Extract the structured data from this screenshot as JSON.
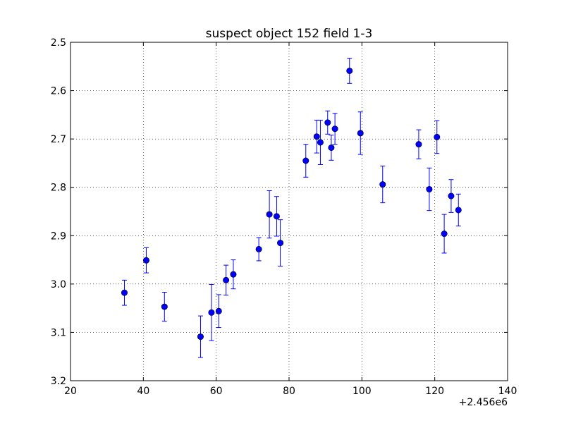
{
  "chart_data": {
    "type": "scatter",
    "title": "suspect object 152 field 1-3",
    "xlabel": "",
    "ylabel": "",
    "x_offset_label": "+2.456e6",
    "xlim": [
      20,
      140
    ],
    "ylim": [
      3.2,
      2.5
    ],
    "y_inverted": true,
    "grid": true,
    "xticks": [
      "20",
      "40",
      "60",
      "80",
      "100",
      "120",
      "140"
    ],
    "yticks": [
      "2.5",
      "2.6",
      "2.7",
      "2.8",
      "2.9",
      "3.0",
      "3.1",
      "3.2"
    ],
    "marker_color": "#0000ff",
    "series": [
      {
        "points": [
          {
            "x": 34.8,
            "y": 3.018,
            "err": 0.026
          },
          {
            "x": 40.8,
            "y": 2.951,
            "err": 0.026
          },
          {
            "x": 45.8,
            "y": 3.047,
            "err": 0.03
          },
          {
            "x": 55.7,
            "y": 3.109,
            "err": 0.043
          },
          {
            "x": 58.7,
            "y": 3.059,
            "err": 0.058
          },
          {
            "x": 60.7,
            "y": 3.056,
            "err": 0.034
          },
          {
            "x": 62.7,
            "y": 2.992,
            "err": 0.031
          },
          {
            "x": 64.7,
            "y": 2.98,
            "err": 0.03
          },
          {
            "x": 71.7,
            "y": 2.928,
            "err": 0.024
          },
          {
            "x": 74.6,
            "y": 2.856,
            "err": 0.049
          },
          {
            "x": 76.6,
            "y": 2.86,
            "err": 0.041
          },
          {
            "x": 77.6,
            "y": 2.915,
            "err": 0.048
          },
          {
            "x": 84.6,
            "y": 2.745,
            "err": 0.034
          },
          {
            "x": 87.6,
            "y": 2.695,
            "err": 0.034
          },
          {
            "x": 88.6,
            "y": 2.707,
            "err": 0.046
          },
          {
            "x": 90.6,
            "y": 2.666,
            "err": 0.024
          },
          {
            "x": 91.6,
            "y": 2.718,
            "err": 0.026
          },
          {
            "x": 92.6,
            "y": 2.679,
            "err": 0.032
          },
          {
            "x": 96.6,
            "y": 2.559,
            "err": 0.026
          },
          {
            "x": 99.6,
            "y": 2.688,
            "err": 0.044
          },
          {
            "x": 105.7,
            "y": 2.794,
            "err": 0.038
          },
          {
            "x": 115.6,
            "y": 2.711,
            "err": 0.03
          },
          {
            "x": 118.5,
            "y": 2.804,
            "err": 0.044
          },
          {
            "x": 120.6,
            "y": 2.696,
            "err": 0.034
          },
          {
            "x": 122.6,
            "y": 2.896,
            "err": 0.04
          },
          {
            "x": 124.5,
            "y": 2.818,
            "err": 0.034
          },
          {
            "x": 126.5,
            "y": 2.847,
            "err": 0.033
          }
        ]
      }
    ]
  }
}
